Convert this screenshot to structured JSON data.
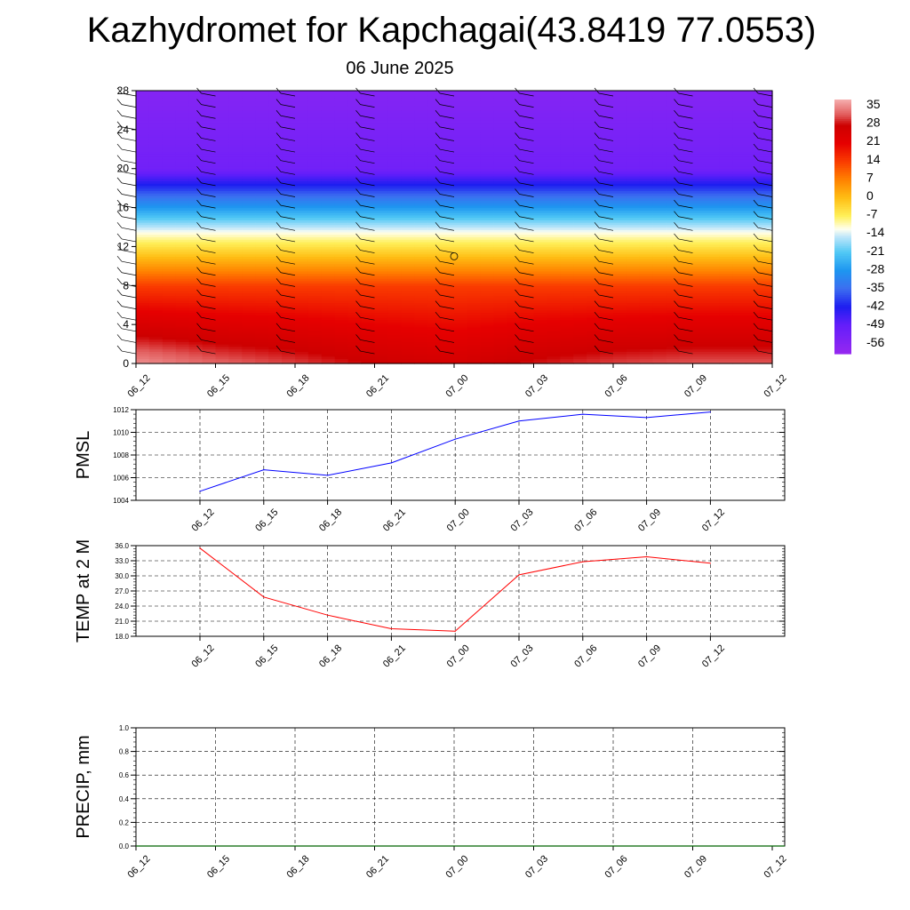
{
  "title": "Kazhydromet for Kapchagai(43.8419 77.0553)",
  "subtitle": "06 June 2025",
  "time_labels": [
    "06_12",
    "06_15",
    "06_18",
    "06_21",
    "07_00",
    "07_03",
    "07_06",
    "07_09",
    "07_12"
  ],
  "colorbar": {
    "labels": [
      "35",
      "28",
      "21",
      "14",
      "7",
      "0",
      "-7",
      "-14",
      "-21",
      "-28",
      "-35",
      "-42",
      "-49",
      "-56"
    ]
  },
  "chart_data": [
    {
      "type": "heatmap",
      "title": "",
      "ylabel": "",
      "x": [
        "06_12",
        "06_15",
        "06_18",
        "06_21",
        "07_00",
        "07_03",
        "07_06",
        "07_09",
        "07_12"
      ],
      "y_ticks": [
        0,
        4,
        8,
        12,
        16,
        20,
        24,
        28
      ],
      "ylim": [
        0,
        28
      ],
      "zlim": [
        -56,
        35
      ],
      "description_levels": "temperature by height, warm (≈28–35) near surface, ≈0 around 12, ≈-56 aloft"
    },
    {
      "type": "line",
      "ylabel": "PMSL",
      "x": [
        "06_12",
        "06_15",
        "06_18",
        "06_21",
        "07_00",
        "07_03",
        "07_06",
        "07_09",
        "07_12"
      ],
      "ylim": [
        1004,
        1012
      ],
      "y_ticks": [
        "1004",
        "1006",
        "1008",
        "1010",
        "1012"
      ],
      "series": [
        {
          "values": [
            1004.8,
            1006.7,
            1006.2,
            1007.3,
            1009.4,
            1011.0,
            1011.6,
            1011.3,
            1011.8
          ],
          "color": "#0000ff"
        }
      ]
    },
    {
      "type": "line",
      "ylabel": "TEMP at 2 M",
      "x": [
        "06_12",
        "06_15",
        "06_18",
        "06_21",
        "07_00",
        "07_03",
        "07_06",
        "07_09",
        "07_12"
      ],
      "ylim": [
        18,
        36
      ],
      "y_ticks": [
        "18.0",
        "21.0",
        "24.0",
        "27.0",
        "30.0",
        "33.0",
        "36.0"
      ],
      "series": [
        {
          "values": [
            35.5,
            25.8,
            22.2,
            19.5,
            19.0,
            30.2,
            32.8,
            33.8,
            32.5
          ],
          "color": "#ff0000"
        }
      ]
    },
    {
      "type": "line",
      "ylabel": "PRECIP, mm",
      "x": [
        "06_12",
        "06_15",
        "06_18",
        "06_21",
        "07_00",
        "07_03",
        "07_06",
        "07_09",
        "07_12"
      ],
      "ylim": [
        0,
        1
      ],
      "y_ticks": [
        "0.0",
        "0.2",
        "0.4",
        "0.6",
        "0.8",
        "1.0"
      ],
      "series": [
        {
          "values": [
            0,
            0,
            0,
            0,
            0,
            0,
            0,
            0,
            0
          ],
          "color": "#006400"
        }
      ]
    }
  ]
}
